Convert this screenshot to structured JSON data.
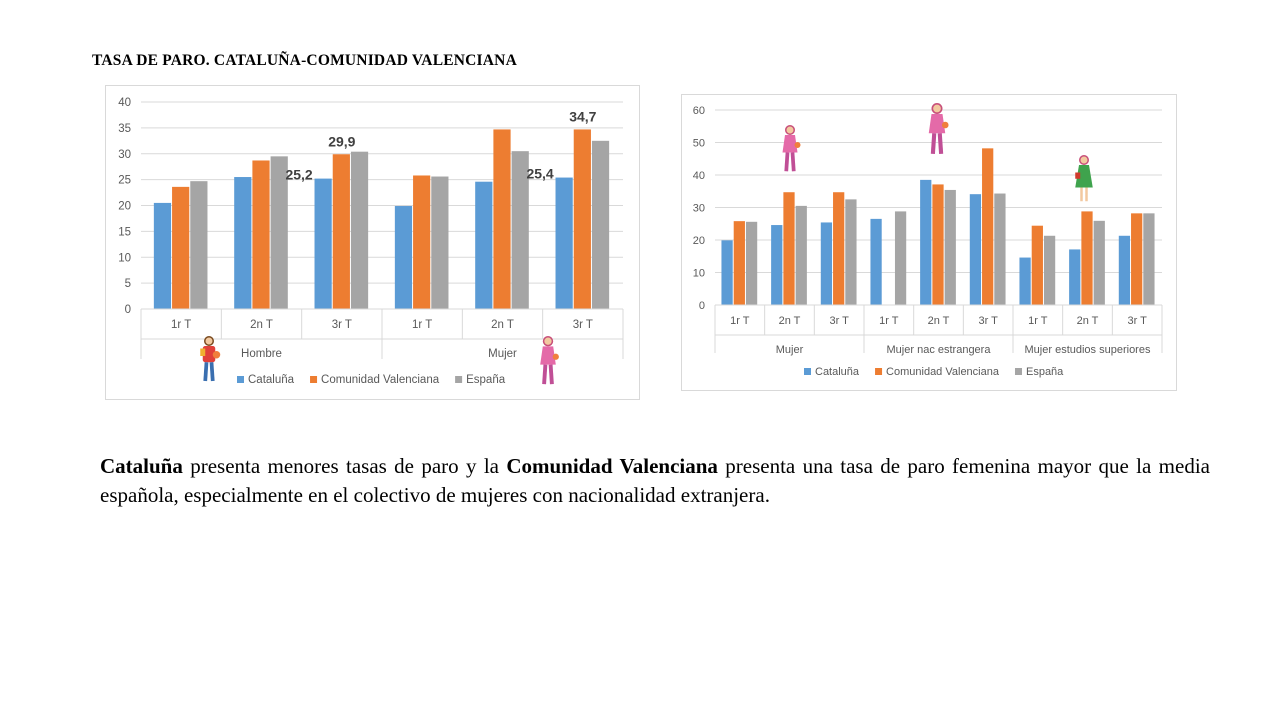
{
  "slide": {
    "title": "TASA DE PARO. CATALUÑA-COMUNIDAD VALENCIANA",
    "text": {
      "p1_bold": "Cataluña",
      "p2": " presenta menores tasas de paro y la ",
      "p3_bold": "Comunidad Valenciana",
      "p4": " presenta una tasa de paro femenina mayor que la media española, especialmente en el colectivo de mujeres con nacionalidad extranjera."
    }
  },
  "colors": {
    "Cataluña": "#5b9bd5",
    "Comunidad Valenciana": "#ed7d31",
    "España": "#a5a5a5"
  },
  "chart_data": [
    {
      "type": "bar",
      "groups": [
        {
          "label": "Hombre",
          "categories": [
            "1r T",
            "2n T",
            "3r T"
          ]
        },
        {
          "label": "Mujer",
          "categories": [
            "1r T",
            "2n T",
            "3r T"
          ]
        }
      ],
      "series": [
        {
          "name": "Cataluña",
          "values": [
            20.5,
            25.5,
            25.2,
            19.9,
            24.6,
            25.4
          ]
        },
        {
          "name": "Comunidad Valenciana",
          "values": [
            23.6,
            28.7,
            29.9,
            25.8,
            34.7,
            34.7
          ]
        },
        {
          "name": "España",
          "values": [
            24.7,
            29.5,
            30.4,
            25.6,
            30.5,
            32.5
          ]
        }
      ],
      "data_labels": [
        {
          "series": "Cataluña",
          "index": 2,
          "text": "25,2"
        },
        {
          "series": "Comunidad Valenciana",
          "index": 2,
          "text": "29,9"
        },
        {
          "series": "Cataluña",
          "index": 5,
          "text": "25,4"
        },
        {
          "series": "Comunidad Valenciana",
          "index": 5,
          "text": "34,7"
        }
      ],
      "ylim": [
        0,
        40
      ],
      "yticks": [
        0,
        5,
        10,
        15,
        20,
        25,
        30,
        35,
        40
      ],
      "grid": true,
      "legend": "bottom",
      "icons": [
        "man-figure-icon",
        "woman-figure-icon"
      ]
    },
    {
      "type": "bar",
      "groups": [
        {
          "label": "Mujer",
          "categories": [
            "1r T",
            "2n T",
            "3r T"
          ]
        },
        {
          "label": "Mujer nac estrangera",
          "categories": [
            "1r T",
            "2n T",
            "3r T"
          ]
        },
        {
          "label": "Mujer estudios superiores",
          "categories": [
            "1r T",
            "2n T",
            "3r T"
          ]
        }
      ],
      "series": [
        {
          "name": "Cataluña",
          "values": [
            19.9,
            24.6,
            25.4,
            26.5,
            38.5,
            34.1,
            14.6,
            17.1,
            21.3
          ]
        },
        {
          "name": "Comunidad Valenciana",
          "values": [
            25.8,
            34.7,
            34.7,
            null,
            37.1,
            48.2,
            24.4,
            28.8,
            28.2
          ]
        },
        {
          "name": "España",
          "values": [
            25.6,
            30.5,
            32.5,
            28.8,
            35.4,
            34.3,
            21.3,
            25.9,
            28.2
          ]
        }
      ],
      "ylim": [
        0,
        60
      ],
      "yticks": [
        0,
        10,
        20,
        30,
        40,
        50,
        60
      ],
      "grid": true,
      "legend": "bottom",
      "icons": [
        "woman-figure-icon",
        "woman-figure-icon",
        "woman-figure-icon"
      ]
    }
  ]
}
